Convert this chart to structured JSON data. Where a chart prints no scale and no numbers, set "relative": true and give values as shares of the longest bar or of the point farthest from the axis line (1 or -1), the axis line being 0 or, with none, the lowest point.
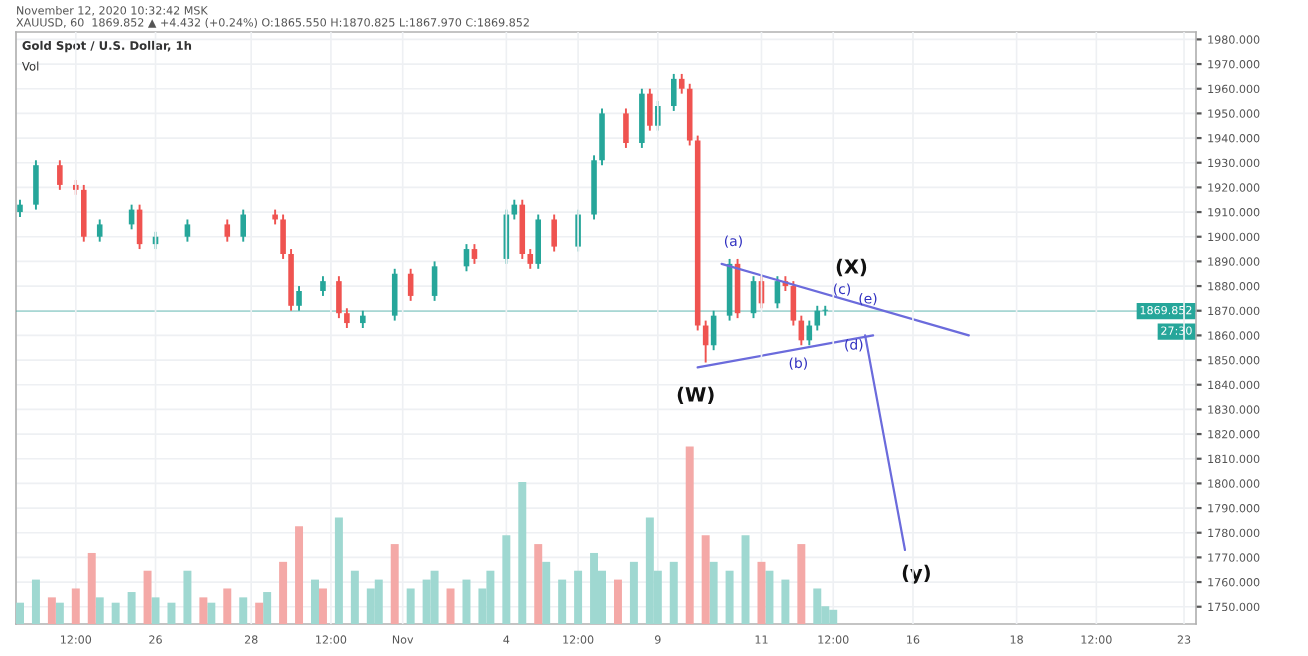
{
  "chart_data": [
    {
      "type": "candlestick",
      "title": "Gold Spot / U.S. Dollar, 1h",
      "subtitle": "Vol",
      "categories": [
        null,
        null,
        null,
        null,
        null,
        null,
        null,
        null,
        null,
        null,
        null,
        null,
        null,
        null,
        null,
        null,
        null,
        null,
        null,
        null,
        null,
        null,
        null,
        null,
        null,
        null,
        null,
        null,
        null,
        null,
        null,
        null,
        null,
        null,
        null,
        null,
        null,
        null,
        null,
        null,
        null,
        null,
        null,
        null,
        null,
        null,
        null,
        null,
        null,
        null,
        null,
        null,
        null,
        null,
        null,
        null,
        null,
        null,
        null,
        null,
        null,
        null,
        null,
        null,
        null,
        null,
        null,
        null,
        null,
        null,
        null,
        null,
        null,
        null,
        null,
        null,
        null,
        null,
        null,
        null,
        null,
        null,
        null,
        null,
        null,
        null,
        null,
        null,
        null,
        null,
        null,
        null,
        null,
        null,
        null,
        null,
        null,
        null,
        null,
        null,
        null,
        null,
        null,
        null,
        null,
        null,
        null,
        null,
        null,
        null,
        null,
        null,
        null,
        null,
        null,
        null,
        null,
        null,
        null,
        null,
        null,
        null,
        null,
        null,
        null,
        null,
        null,
        null,
        null,
        null,
        null,
        null,
        null,
        null,
        null,
        null,
        null,
        null,
        null,
        null,
        null,
        null,
        null,
        null,
        null,
        null,
        null,
        null
      ],
      "ohlc": [
        [
          1910,
          1915,
          1908,
          1913
        ],
        null,
        [
          1913,
          1931,
          1911,
          1929
        ],
        null,
        null,
        [
          1929,
          1931,
          1919,
          1921
        ],
        null,
        [
          1921,
          1923,
          1917,
          1919
        ],
        [
          1919,
          1921,
          1898,
          1900
        ],
        null,
        [
          1900,
          1907,
          1898,
          1905
        ],
        null,
        null,
        null,
        [
          1905,
          1913,
          1903,
          1911
        ],
        [
          1911,
          1913,
          1895,
          1897
        ],
        null,
        [
          1897,
          1902,
          1895,
          1900
        ],
        null,
        null,
        null,
        [
          1900,
          1907,
          1898,
          1905
        ],
        null,
        null,
        null,
        null,
        [
          1905,
          1907,
          1898,
          1900
        ],
        null,
        [
          1900,
          1911,
          1898,
          1909
        ],
        null,
        null,
        null,
        [
          1909,
          1911,
          1905,
          1907
        ],
        [
          1907,
          1909,
          1891,
          1893
        ],
        [
          1893,
          1895,
          1870,
          1872
        ],
        [
          1872,
          1880,
          1870,
          1878
        ],
        null,
        null,
        [
          1878,
          1884,
          1876,
          1882
        ],
        null,
        [
          1882,
          1884,
          1867,
          1869
        ],
        [
          1869,
          1871,
          1863,
          1865
        ],
        null,
        [
          1865,
          1870,
          1863,
          1868
        ],
        null,
        null,
        null,
        [
          1868,
          1887,
          1866,
          1885
        ],
        null,
        [
          1885,
          1887,
          1874,
          1876
        ],
        null,
        null,
        [
          1876,
          1890,
          1874,
          1888
        ],
        null,
        null,
        null,
        [
          1888,
          1897,
          1886,
          1895
        ],
        [
          1895,
          1897,
          1889,
          1891
        ],
        null,
        null,
        null,
        [
          1891,
          1911,
          1889,
          1909
        ],
        [
          1909,
          1915,
          1907,
          1913
        ],
        [
          1913,
          1915,
          1891,
          1893
        ],
        [
          1893,
          1895,
          1887,
          1889
        ],
        [
          1889,
          1909,
          1887,
          1907
        ],
        null,
        [
          1907,
          1909,
          1894,
          1896
        ],
        null,
        null,
        [
          1896,
          1911,
          1894,
          1909
        ],
        null,
        [
          1909,
          1933,
          1907,
          1931
        ],
        [
          1931,
          1952,
          1929,
          1950
        ],
        null,
        null,
        [
          1950,
          1952,
          1936,
          1938
        ],
        null,
        [
          1938,
          1960,
          1936,
          1958
        ],
        [
          1958,
          1960,
          1943,
          1945
        ],
        [
          1945,
          1955,
          1943,
          1953
        ],
        null,
        [
          1953,
          1966,
          1951,
          1964
        ],
        [
          1964,
          1966,
          1958,
          1960
        ],
        [
          1960,
          1962,
          1937,
          1939
        ],
        [
          1939,
          1941,
          1862,
          1864
        ],
        [
          1864,
          1866,
          1849,
          1856
        ],
        [
          1856,
          1870,
          1854,
          1868
        ],
        null,
        [
          1868,
          1891,
          1866,
          1889
        ],
        [
          1889,
          1891,
          1867,
          1869
        ],
        null,
        [
          1869,
          1884,
          1867,
          1882
        ],
        [
          1882,
          1884,
          1871,
          1873
        ],
        null,
        [
          1873,
          1884,
          1871,
          1882
        ],
        [
          1882,
          1884,
          1878,
          1880
        ],
        [
          1880,
          1882,
          1864,
          1866
        ],
        [
          1866,
          1868,
          1856,
          1858
        ],
        [
          1858,
          1866,
          1856,
          1864
        ],
        [
          1864,
          1872,
          1862,
          1870
        ],
        [
          1870,
          1872,
          1868,
          1870
        ],
        null,
        null,
        null,
        null,
        null,
        null,
        null,
        null,
        null,
        null,
        null,
        null,
        null,
        null,
        null,
        null,
        null,
        null,
        null,
        null,
        null,
        null,
        null,
        null,
        null,
        null,
        null,
        null,
        null,
        null,
        null,
        null,
        null,
        null,
        null,
        null,
        null,
        null,
        null,
        null,
        null,
        null,
        null,
        null,
        null,
        null
      ],
      "colors": [
        "#26a69a",
        null,
        "#26a69a",
        null,
        null,
        "#ef5350",
        null,
        "#ef5350",
        "#ef5350",
        null,
        "#26a69a",
        null,
        null,
        null,
        "#26a69a",
        "#ef5350",
        null,
        "#26a69a",
        null,
        null,
        null,
        "#26a69a",
        null,
        null,
        null,
        null,
        "#ef5350",
        null,
        "#26a69a",
        null,
        null,
        null,
        "#ef5350",
        "#ef5350",
        "#ef5350",
        "#26a69a",
        null,
        null,
        "#26a69a",
        null,
        "#ef5350",
        "#ef5350",
        null,
        "#26a69a",
        null,
        null,
        null,
        "#26a69a",
        null,
        "#ef5350",
        null,
        null,
        "#26a69a",
        null,
        null,
        null,
        "#26a69a",
        "#ef5350",
        null,
        null,
        null,
        "#26a69a",
        "#26a69a",
        "#ef5350",
        "#ef5350",
        "#26a69a",
        null,
        "#ef5350",
        null,
        null,
        "#26a69a",
        null,
        "#26a69a",
        "#26a69a",
        null,
        null,
        "#ef5350",
        null,
        "#26a69a",
        "#ef5350",
        "#26a69a",
        null,
        "#26a69a",
        "#ef5350",
        "#ef5350",
        "#ef5350",
        "#ef5350",
        "#26a69a",
        null,
        "#26a69a",
        "#ef5350",
        null,
        "#26a69a",
        "#ef5350",
        null,
        "#26a69a",
        "#ef5350",
        "#ef5350",
        "#ef5350",
        "#26a69a",
        "#26a69a",
        "#26a69a",
        null,
        null,
        null,
        null,
        null,
        null,
        null,
        null,
        null,
        null,
        null,
        null,
        null,
        null,
        null,
        null,
        null,
        null,
        null,
        null,
        null,
        null,
        null,
        null,
        null,
        null,
        null,
        null,
        null,
        null,
        null,
        null,
        null,
        null,
        null,
        null,
        null,
        null,
        null,
        null,
        null,
        null,
        null,
        null,
        null,
        null
      ],
      "series": [
        {
          "type": "line",
          "color": "#6b6bdc",
          "values": [
            null,
            null,
            null,
            null,
            null,
            null,
            null,
            null,
            null,
            null,
            null,
            null,
            null,
            null,
            null,
            null,
            null,
            null,
            null,
            null,
            null,
            null,
            null,
            null,
            null,
            null,
            null,
            null,
            null,
            null,
            null,
            null,
            null,
            null,
            null,
            null,
            null,
            null,
            null,
            null,
            null,
            null,
            null,
            null,
            null,
            null,
            null,
            null,
            null,
            null,
            null,
            null,
            null,
            null,
            null,
            null,
            null,
            null,
            null,
            null,
            null,
            null,
            null,
            null,
            null,
            null,
            null,
            null,
            null,
            null,
            null,
            null,
            null,
            null,
            null,
            null,
            null,
            null,
            null,
            null,
            null,
            null,
            null,
            null,
            null,
            null,
            null,
            null,
            1889,
            null,
            null,
            null,
            null,
            null,
            null,
            null,
            null,
            null,
            null,
            null,
            null,
            null,
            null,
            null,
            null,
            null,
            null,
            null,
            null,
            null,
            null,
            null,
            null,
            null,
            null,
            null,
            null,
            null,
            null,
            1860,
            null,
            null,
            null,
            null,
            null,
            null,
            null,
            null,
            null,
            null,
            null,
            null,
            null,
            null,
            null,
            null,
            null,
            null,
            null,
            null,
            null,
            null,
            null,
            null,
            null,
            null,
            null,
            null
          ]
        },
        {
          "type": "line",
          "color": "#6b6bdc",
          "values": [
            null,
            null,
            null,
            null,
            null,
            null,
            null,
            null,
            null,
            null,
            null,
            null,
            null,
            null,
            null,
            null,
            null,
            null,
            null,
            null,
            null,
            null,
            null,
            null,
            null,
            null,
            null,
            null,
            null,
            null,
            null,
            null,
            null,
            null,
            null,
            null,
            null,
            null,
            null,
            null,
            null,
            null,
            null,
            null,
            null,
            null,
            null,
            null,
            null,
            null,
            null,
            null,
            null,
            null,
            null,
            null,
            null,
            null,
            null,
            null,
            null,
            null,
            null,
            null,
            null,
            null,
            null,
            null,
            null,
            null,
            null,
            null,
            null,
            null,
            null,
            null,
            null,
            null,
            null,
            null,
            null,
            null,
            null,
            null,
            null,
            1847,
            null,
            null,
            null,
            null,
            null,
            null,
            null,
            null,
            null,
            null,
            null,
            null,
            null,
            null,
            null,
            null,
            null,
            null,
            null,
            null,
            null,
            1860,
            null,
            null,
            null,
            null,
            null,
            null,
            null,
            null,
            null,
            null,
            null,
            null,
            null,
            null,
            null,
            null,
            null,
            null,
            null,
            null,
            null,
            null,
            null,
            null,
            null,
            null,
            null,
            null,
            null,
            null,
            null,
            null,
            null,
            null,
            null,
            null,
            null,
            null,
            null,
            null
          ]
        },
        {
          "type": "line",
          "color": "#6b6bdc",
          "values": [
            null,
            null,
            null,
            null,
            null,
            null,
            null,
            null,
            null,
            null,
            null,
            null,
            null,
            null,
            null,
            null,
            null,
            null,
            null,
            null,
            null,
            null,
            null,
            null,
            null,
            null,
            null,
            null,
            null,
            null,
            null,
            null,
            null,
            null,
            null,
            null,
            null,
            null,
            null,
            null,
            null,
            null,
            null,
            null,
            null,
            null,
            null,
            null,
            null,
            null,
            null,
            null,
            null,
            null,
            null,
            null,
            null,
            null,
            null,
            null,
            null,
            null,
            null,
            null,
            null,
            null,
            null,
            null,
            null,
            null,
            null,
            null,
            null,
            null,
            null,
            null,
            null,
            null,
            null,
            null,
            null,
            null,
            null,
            null,
            null,
            null,
            null,
            null,
            null,
            null,
            null,
            null,
            null,
            null,
            null,
            null,
            null,
            null,
            null,
            null,
            null,
            null,
            null,
            null,
            null,
            null,
            1860,
            null,
            null,
            null,
            null,
            1773,
            null,
            null,
            null,
            null,
            null,
            null,
            null,
            null,
            null,
            null,
            null,
            null,
            null,
            null,
            null,
            null,
            null,
            null,
            null,
            null,
            null,
            null,
            null,
            null,
            null,
            null,
            null,
            null,
            null,
            null,
            null,
            null,
            null,
            null,
            null,
            null
          ]
        }
      ],
      "annotations": [
        "November 12, 2020 10:32:42 MSK",
        "XAUUSD, 60  1869.852 ▲ +4.432 (+0.24%) O:1865.550 H:1870.825 L:1867.970 C:1869.852",
        "27:30",
        "(a)",
        "(b)",
        "(c)",
        "(d)",
        "(e)",
        "(X)",
        "(W)",
        "(y)"
      ],
      "ref_lines": [
        {
          "axis": "y",
          "value": 1869.852,
          "label": "1869.852",
          "color": "#26a69a"
        }
      ],
      "ylim": [
        1743,
        1983
      ],
      "yticks": [
        {
          "value": 1750,
          "label": "1750.000"
        },
        {
          "value": 1760,
          "label": "1760.000"
        },
        {
          "value": 1770,
          "label": "1770.000"
        },
        {
          "value": 1780,
          "label": "1780.000"
        },
        {
          "value": 1790,
          "label": "1790.000"
        },
        {
          "value": 1800,
          "label": "1800.000"
        },
        {
          "value": 1810,
          "label": "1810.000"
        },
        {
          "value": 1820,
          "label": "1820.000"
        },
        {
          "value": 1830,
          "label": "1830.000"
        },
        {
          "value": 1840,
          "label": "1840.000"
        },
        {
          "value": 1850,
          "label": "1850.000"
        },
        {
          "value": 1860,
          "label": "1860.000"
        },
        {
          "value": 1870,
          "label": "1870.000"
        },
        {
          "value": 1880,
          "label": "1880.000"
        },
        {
          "value": 1890,
          "label": "1890.000"
        },
        {
          "value": 1900,
          "label": "1900.000"
        },
        {
          "value": 1910,
          "label": "1910.000"
        },
        {
          "value": 1920,
          "label": "1920.000"
        },
        {
          "value": 1930,
          "label": "1930.000"
        },
        {
          "value": 1940,
          "label": "1940.000"
        },
        {
          "value": 1950,
          "label": "1950.000"
        },
        {
          "value": 1960,
          "label": "1960.000"
        },
        {
          "value": 1970,
          "label": "1970.000"
        },
        {
          "value": 1980,
          "label": "1980.000"
        }
      ],
      "grid": "y",
      "tick_labels": "y"
    },
    {
      "type": "bar",
      "relative": true,
      "tick_labels": "x",
      "grid": "x",
      "categories": [
        null,
        null,
        null,
        null,
        null,
        null,
        null,
        "12:00",
        null,
        null,
        null,
        null,
        null,
        null,
        null,
        null,
        null,
        "26",
        null,
        null,
        null,
        null,
        null,
        null,
        null,
        null,
        null,
        null,
        null,
        "28",
        null,
        null,
        null,
        null,
        null,
        null,
        null,
        null,
        null,
        "12:00",
        null,
        null,
        null,
        null,
        null,
        null,
        null,
        null,
        "Nov",
        null,
        null,
        null,
        null,
        null,
        null,
        null,
        null,
        null,
        null,
        null,
        null,
        "4",
        null,
        null,
        null,
        null,
        null,
        null,
        null,
        null,
        "12:00",
        null,
        null,
        null,
        null,
        null,
        null,
        null,
        null,
        null,
        "9",
        null,
        null,
        null,
        null,
        null,
        null,
        null,
        null,
        null,
        null,
        null,
        null,
        "11",
        null,
        null,
        null,
        null,
        null,
        null,
        null,
        null,
        "12:00",
        null,
        null,
        null,
        null,
        null,
        null,
        null,
        null,
        null,
        "16",
        null,
        null,
        null,
        null,
        null,
        null,
        null,
        null,
        null,
        null,
        null,
        null,
        "18",
        null,
        null,
        null,
        null,
        null,
        null,
        null,
        null,
        null,
        "12:00",
        null,
        null,
        null,
        null,
        null,
        null,
        null,
        null,
        null,
        null,
        "23",
        null
      ],
      "series": [
        {
          "color": "#9fd8d1",
          "values": [
            0.12,
            null,
            0.25,
            null,
            null,
            0.12,
            null,
            null,
            null,
            null,
            0.15,
            null,
            0.12,
            null,
            0.18,
            null,
            null,
            0.15,
            null,
            0.12,
            null,
            0.3,
            null,
            null,
            0.12,
            null,
            null,
            null,
            0.15,
            null,
            null,
            0.18,
            null,
            null,
            null,
            null,
            null,
            0.25,
            null,
            null,
            0.6,
            null,
            0.3,
            null,
            0.2,
            0.25,
            null,
            null,
            null,
            0.2,
            null,
            0.25,
            0.3,
            null,
            null,
            null,
            0.25,
            null,
            0.2,
            0.3,
            null,
            0.5,
            null,
            0.8,
            null,
            null,
            0.35,
            null,
            0.25,
            null,
            0.3,
            null,
            0.4,
            0.3,
            null,
            null,
            null,
            0.35,
            null,
            0.6,
            0.3,
            null,
            0.35,
            null,
            null,
            null,
            null,
            0.35,
            null,
            0.3,
            null,
            0.5,
            null,
            null,
            0.3,
            null,
            0.25,
            null,
            null,
            null,
            0.2,
            0.1,
            0.08,
            null,
            null,
            null,
            null,
            null,
            null,
            null,
            null,
            null,
            null,
            null,
            null,
            null,
            null,
            null,
            null,
            null,
            null,
            null,
            null,
            null,
            null,
            null,
            null,
            null,
            null,
            null,
            null,
            null,
            null,
            null,
            null,
            null,
            null,
            null,
            null,
            null,
            null,
            null,
            null,
            null,
            null,
            null,
            null,
            null
          ]
        },
        {
          "color": "#f4a9a7",
          "values": [
            null,
            null,
            null,
            null,
            0.15,
            null,
            null,
            0.2,
            null,
            0.4,
            null,
            null,
            null,
            null,
            null,
            null,
            0.3,
            null,
            null,
            null,
            null,
            null,
            null,
            0.15,
            null,
            null,
            0.2,
            null,
            null,
            null,
            0.12,
            null,
            null,
            0.35,
            null,
            0.55,
            null,
            null,
            0.2,
            null,
            null,
            null,
            null,
            null,
            null,
            null,
            null,
            0.45,
            null,
            null,
            null,
            null,
            null,
            null,
            0.2,
            null,
            null,
            null,
            null,
            null,
            null,
            null,
            null,
            null,
            null,
            0.45,
            null,
            null,
            null,
            null,
            null,
            null,
            null,
            null,
            null,
            0.25,
            null,
            null,
            null,
            null,
            null,
            null,
            null,
            null,
            1.0,
            null,
            0.5,
            null,
            null,
            null,
            null,
            null,
            null,
            0.35,
            null,
            null,
            null,
            null,
            0.45,
            null,
            null,
            null,
            null,
            null,
            null,
            null,
            null,
            null,
            null,
            null,
            null,
            null,
            null,
            null,
            null,
            null,
            null,
            null,
            null,
            null,
            null,
            null,
            null,
            null,
            null,
            null,
            null,
            null,
            null,
            null,
            null,
            null,
            null,
            null,
            null,
            null,
            null,
            null,
            null,
            null,
            null,
            null,
            null,
            null,
            null,
            null,
            null,
            null
          ]
        }
      ]
    }
  ]
}
